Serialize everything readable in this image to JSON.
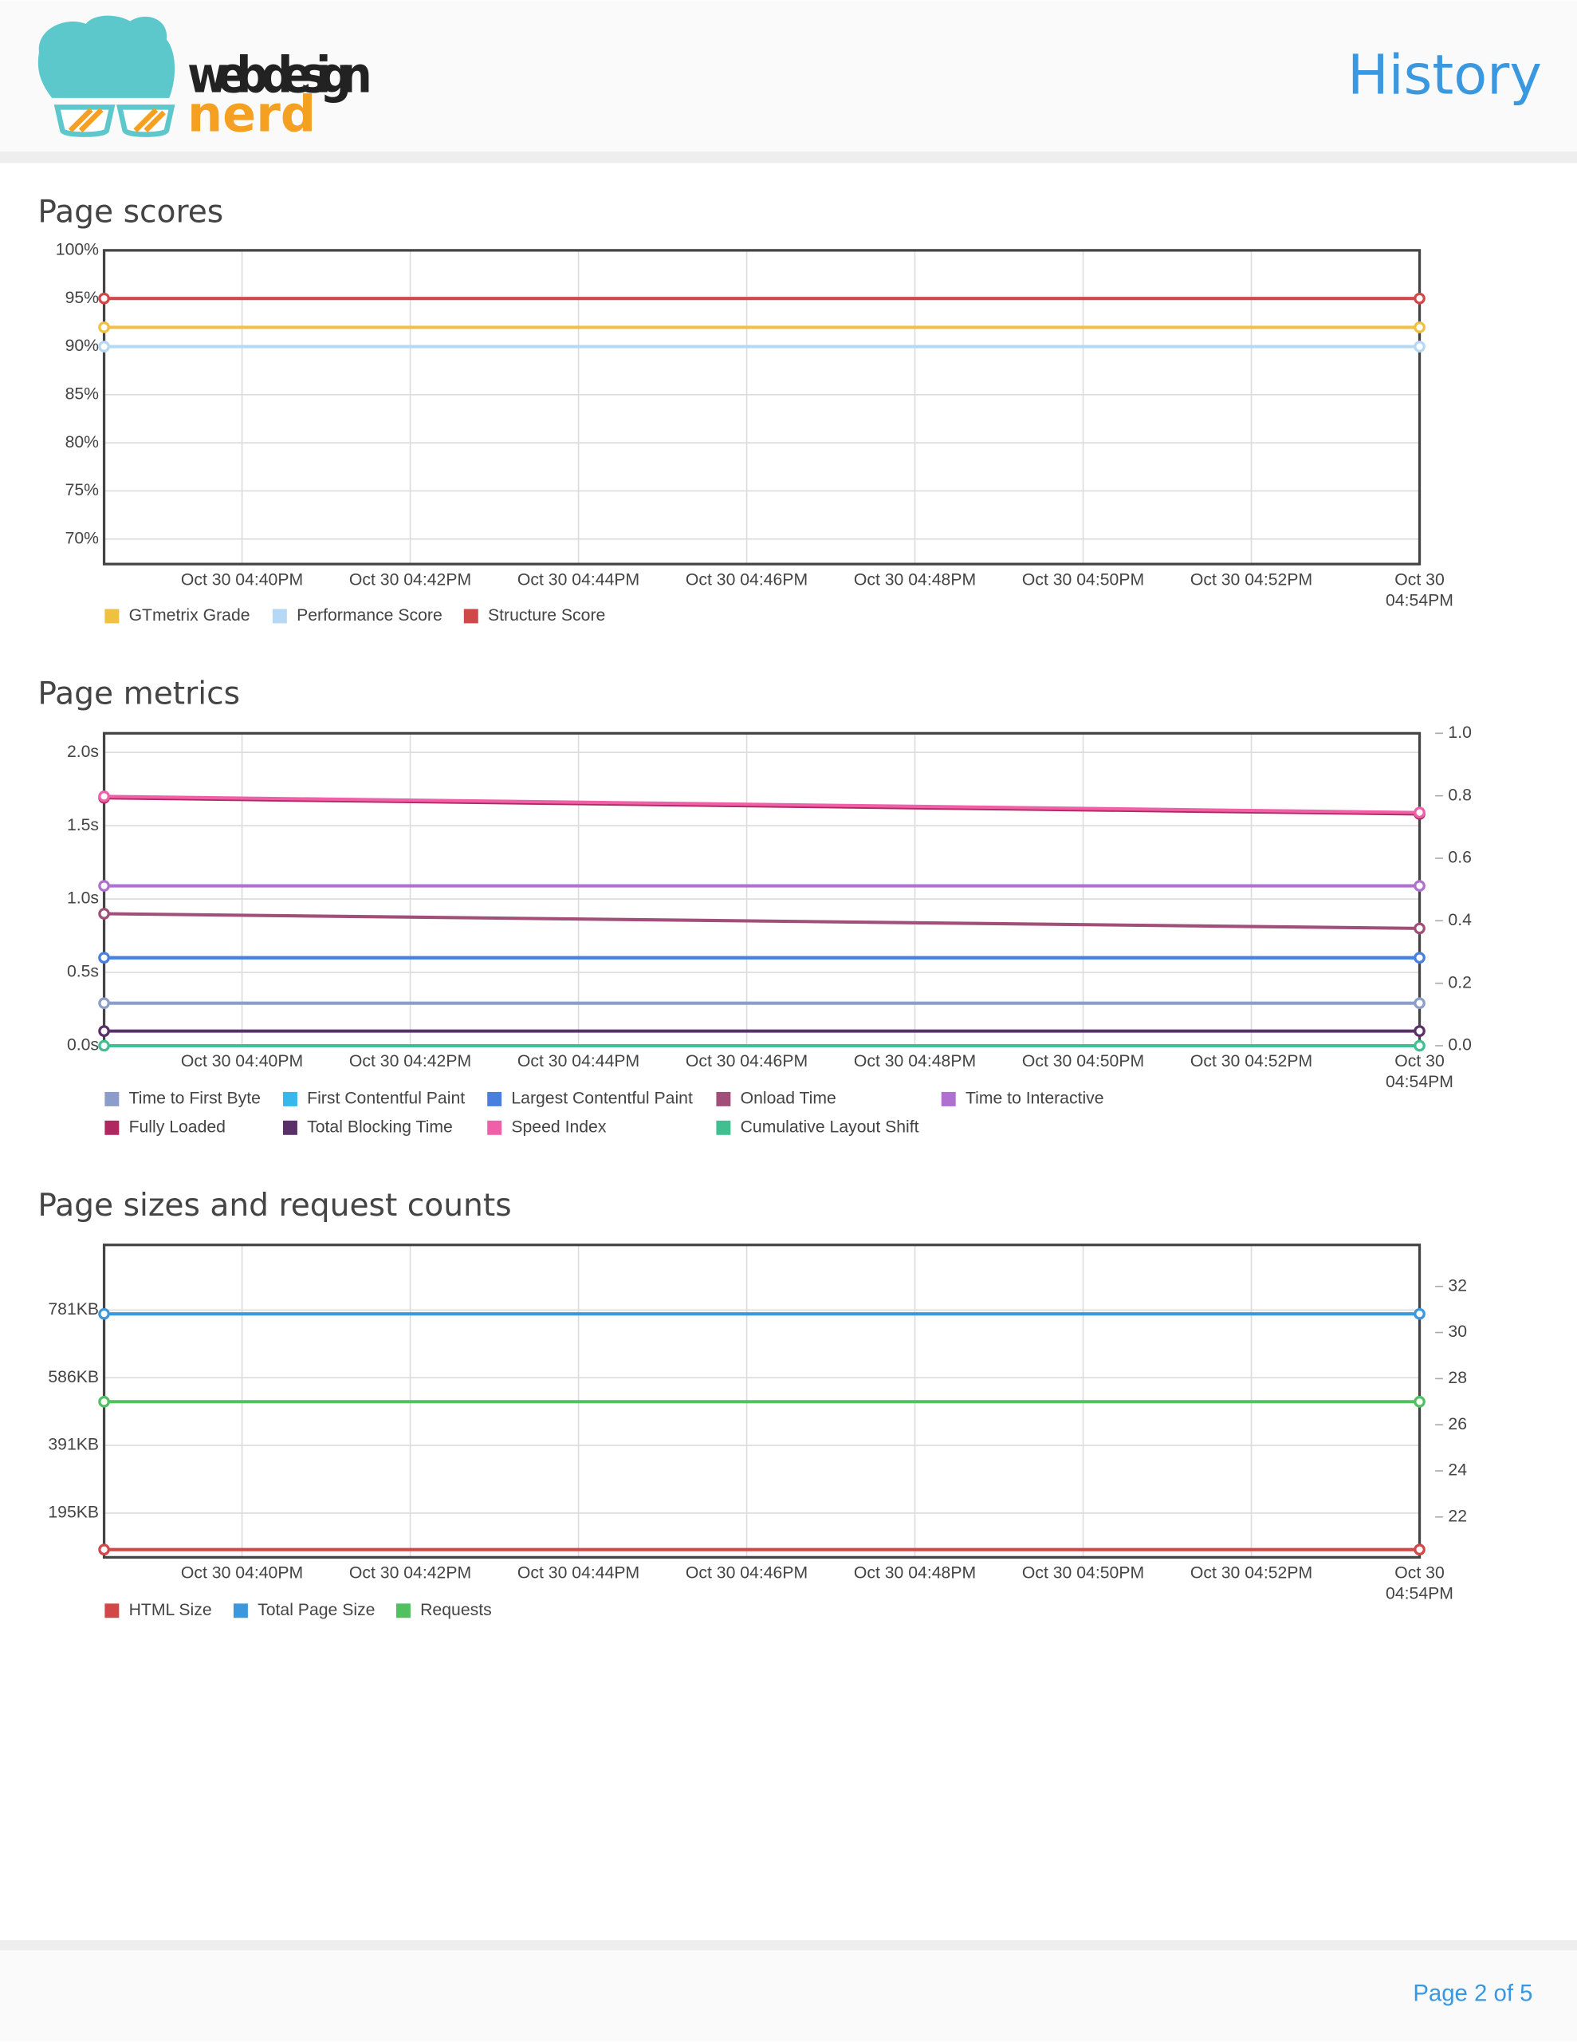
{
  "header": {
    "logo_top": "web design",
    "logo_bottom": "nerd",
    "title": "History"
  },
  "chart_data": [
    {
      "type": "line",
      "title": "Page scores",
      "x": [
        38.36,
        54
      ],
      "xlim": [
        38.36,
        54
      ],
      "xticks": [
        {
          "value": 40,
          "label": "Oct 30 04:40PM"
        },
        {
          "value": 42,
          "label": "Oct 30 04:42PM"
        },
        {
          "value": 44,
          "label": "Oct 30 04:44PM"
        },
        {
          "value": 46,
          "label": "Oct 30 04:46PM"
        },
        {
          "value": 48,
          "label": "Oct 30 04:48PM"
        },
        {
          "value": 50,
          "label": "Oct 30 04:50PM"
        },
        {
          "value": 52,
          "label": "Oct 30 04:52PM"
        },
        {
          "value": 54,
          "label": "Oct 30 04:54PM"
        }
      ],
      "ylim": [
        67.4,
        100
      ],
      "yticks": [
        {
          "value": 70,
          "label": "70%"
        },
        {
          "value": 75,
          "label": "75%"
        },
        {
          "value": 80,
          "label": "80%"
        },
        {
          "value": 85,
          "label": "85%"
        },
        {
          "value": 90,
          "label": "90%"
        },
        {
          "value": 95,
          "label": "95%"
        },
        {
          "value": 100,
          "label": "100%"
        }
      ],
      "grid": true,
      "legend": "bottom",
      "series": [
        {
          "name": "GTmetrix Grade",
          "color": "#f0c040",
          "values": [
            92,
            92
          ]
        },
        {
          "name": "Performance Score",
          "color": "#b5d8f5",
          "values": [
            90,
            90
          ]
        },
        {
          "name": "Structure Score",
          "color": "#d04848",
          "values": [
            95,
            95
          ]
        }
      ]
    },
    {
      "type": "line",
      "title": "Page metrics",
      "x": [
        38.36,
        54
      ],
      "xlim": [
        38.36,
        54
      ],
      "xticks": [
        {
          "value": 40,
          "label": "Oct 30 04:40PM"
        },
        {
          "value": 42,
          "label": "Oct 30 04:42PM"
        },
        {
          "value": 44,
          "label": "Oct 30 04:44PM"
        },
        {
          "value": 46,
          "label": "Oct 30 04:46PM"
        },
        {
          "value": 48,
          "label": "Oct 30 04:48PM"
        },
        {
          "value": 50,
          "label": "Oct 30 04:50PM"
        },
        {
          "value": 52,
          "label": "Oct 30 04:52PM"
        },
        {
          "value": 54,
          "label": "Oct 30 04:54PM"
        }
      ],
      "ylim": [
        0,
        2.13
      ],
      "yticks": [
        {
          "value": 0,
          "label": "0.0s"
        },
        {
          "value": 0.5,
          "label": "0.5s"
        },
        {
          "value": 1,
          "label": "1.0s"
        },
        {
          "value": 1.5,
          "label": "1.5s"
        },
        {
          "value": 2,
          "label": "2.0s"
        }
      ],
      "y2lim": [
        0,
        1
      ],
      "y2ticks": [
        {
          "value": 0,
          "label": "0.0"
        },
        0.2,
        0.4,
        0.6,
        0.8,
        {
          "value": 1,
          "label": "1.0"
        }
      ],
      "grid": true,
      "legend": "bottom",
      "series": [
        {
          "name": "Time to First Byte",
          "color": "#8b9dc8",
          "values": [
            0.29,
            0.29
          ]
        },
        {
          "name": "First Contentful Paint",
          "color": "#35b8ea",
          "values": [
            0.6,
            0.6
          ]
        },
        {
          "name": "Largest Contentful Paint",
          "color": "#4a7fe0",
          "values": [
            0.6,
            0.6
          ]
        },
        {
          "name": "Onload Time",
          "color": "#a05078",
          "values": [
            0.9,
            0.8
          ]
        },
        {
          "name": "Time to Interactive",
          "color": "#b070d0",
          "values": [
            1.09,
            1.09
          ]
        },
        {
          "name": "Fully Loaded",
          "color": "#b02860",
          "values": [
            1.69,
            1.58
          ]
        },
        {
          "name": "Total Blocking Time",
          "color": "#5a3068",
          "values": [
            0.1,
            0.1
          ]
        },
        {
          "name": "Speed Index",
          "color": "#f060a8",
          "values": [
            1.7,
            1.59
          ]
        },
        {
          "name": "Cumulative Layout Shift",
          "color": "#40c090",
          "values": [
            0,
            0
          ],
          "axis": "y2"
        }
      ]
    },
    {
      "type": "line",
      "title": "Page sizes and request counts",
      "x": [
        38.36,
        54
      ],
      "xlim": [
        38.36,
        54
      ],
      "xticks": [
        {
          "value": 40,
          "label": "Oct 30 04:40PM"
        },
        {
          "value": 42,
          "label": "Oct 30 04:42PM"
        },
        {
          "value": 44,
          "label": "Oct 30 04:44PM"
        },
        {
          "value": 46,
          "label": "Oct 30 04:46PM"
        },
        {
          "value": 48,
          "label": "Oct 30 04:48PM"
        },
        {
          "value": 50,
          "label": "Oct 30 04:50PM"
        },
        {
          "value": 52,
          "label": "Oct 30 04:52PM"
        },
        {
          "value": 54,
          "label": "Oct 30 04:54PM"
        }
      ],
      "ylim": [
        67.6,
        969
      ],
      "yticks": [
        {
          "value": 195.3,
          "label": "195KB"
        },
        {
          "value": 390.6,
          "label": "391KB"
        },
        {
          "value": 585.9,
          "label": "586KB"
        },
        {
          "value": 781.25,
          "label": "781KB"
        }
      ],
      "y2lim": [
        20.25,
        33.8
      ],
      "y2ticks": [
        22,
        24,
        26,
        28,
        30,
        32
      ],
      "grid": true,
      "legend": "bottom",
      "series": [
        {
          "name": "HTML Size",
          "color": "#d04848",
          "values": [
            90,
            90
          ]
        },
        {
          "name": "Total Page Size",
          "color": "#3a98e0",
          "values": [
            770,
            770
          ]
        },
        {
          "name": "Requests",
          "color": "#50c060",
          "values": [
            27,
            27
          ],
          "axis": "y2"
        }
      ]
    }
  ],
  "footer": {
    "page": "Page 2 of 5"
  }
}
